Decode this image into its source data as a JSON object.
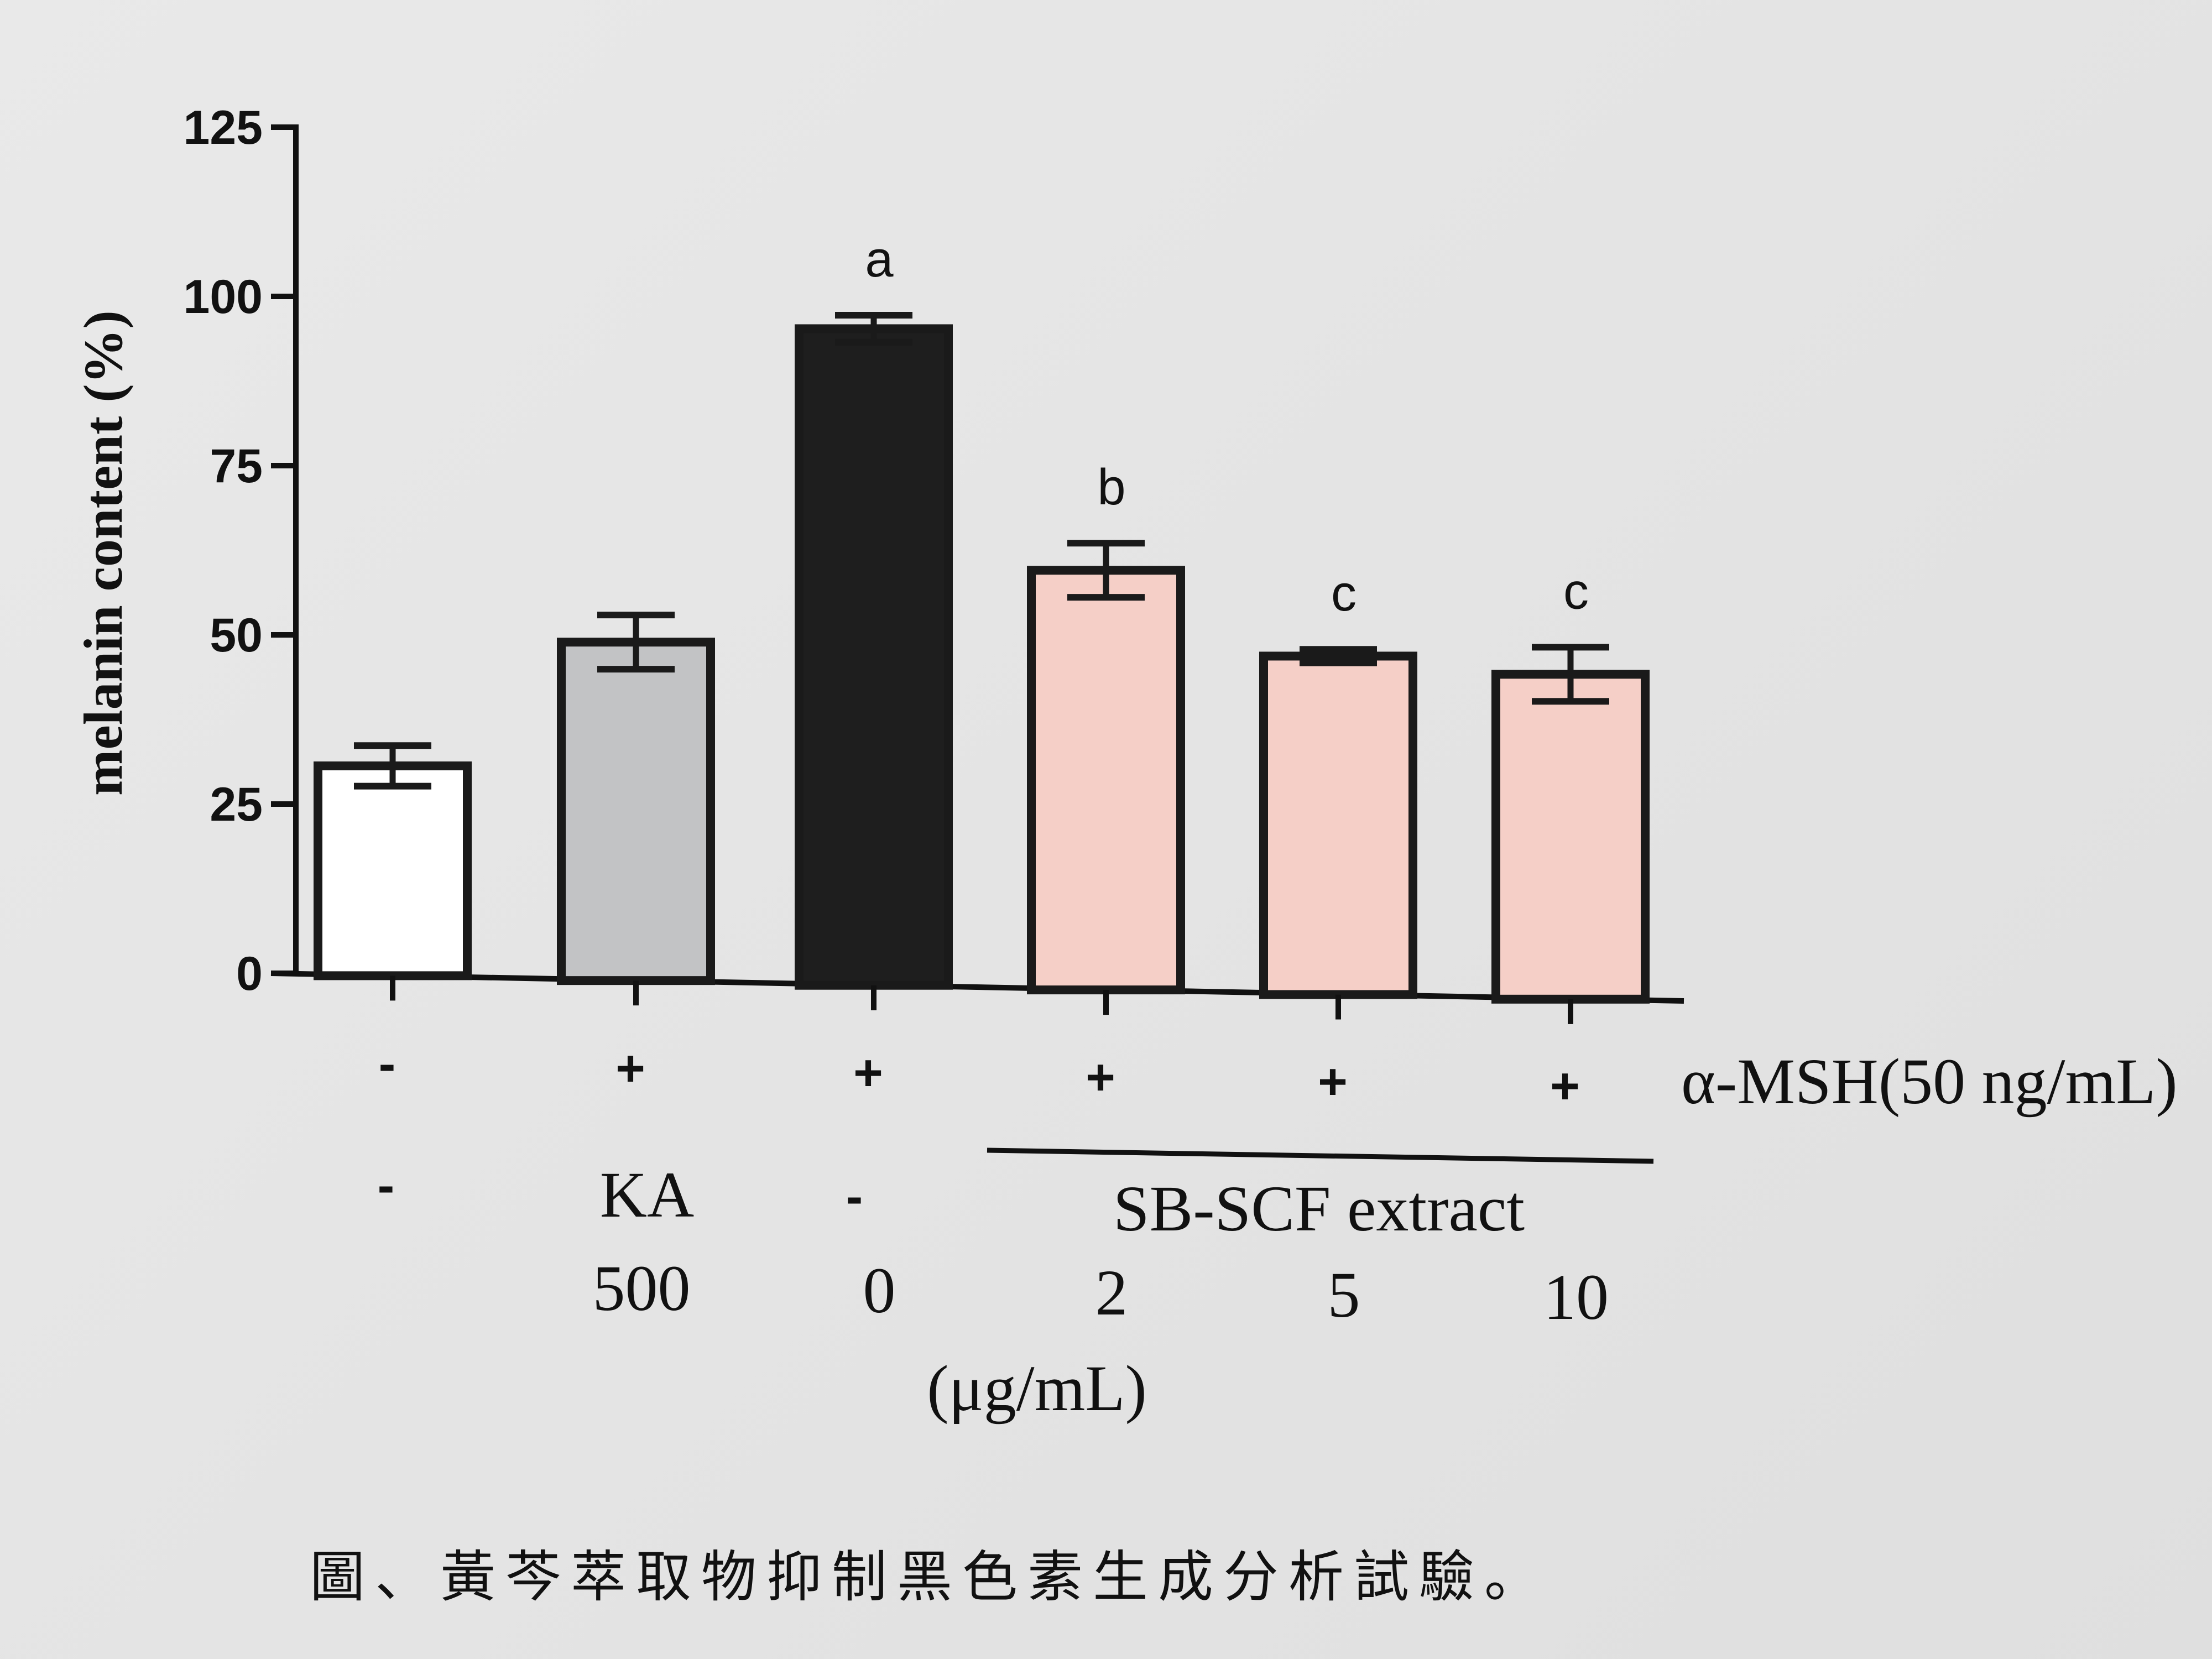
{
  "chart_data": {
    "type": "bar",
    "ylabel": "melanin content (%)",
    "ylim": [
      0,
      125
    ],
    "yticks": [
      "0",
      "25",
      "50",
      "75",
      "100",
      "125"
    ],
    "grid": false,
    "categories": [
      "-",
      "KA 500",
      "0",
      "2",
      "5",
      "10"
    ],
    "values": [
      31,
      50,
      97,
      62,
      50,
      48
    ],
    "errors": [
      3,
      4,
      2,
      4,
      1,
      4
    ],
    "bar_colors": [
      "#ffffff",
      "#c2c3c5",
      "#1e1e1e",
      "#f5cfc7",
      "#f5cfc7",
      "#f5cfc7"
    ],
    "significance": [
      "",
      "",
      "a",
      "b",
      "c",
      "c"
    ],
    "msh_row": {
      "label": "α-MSH(50 ng/mL)",
      "signs": [
        "-",
        "+",
        "+",
        "+",
        "+",
        "+"
      ]
    },
    "treatment_row": {
      "labels": [
        "-",
        "KA",
        "-"
      ],
      "group_label": "SB-SCF extract"
    },
    "dose_row": {
      "values": [
        "",
        "500",
        "0",
        "2",
        "5",
        "10"
      ],
      "unit": "(μg/mL)"
    }
  },
  "caption": "圖、黃芩萃取物抑制黑色素生成分析試驗。"
}
